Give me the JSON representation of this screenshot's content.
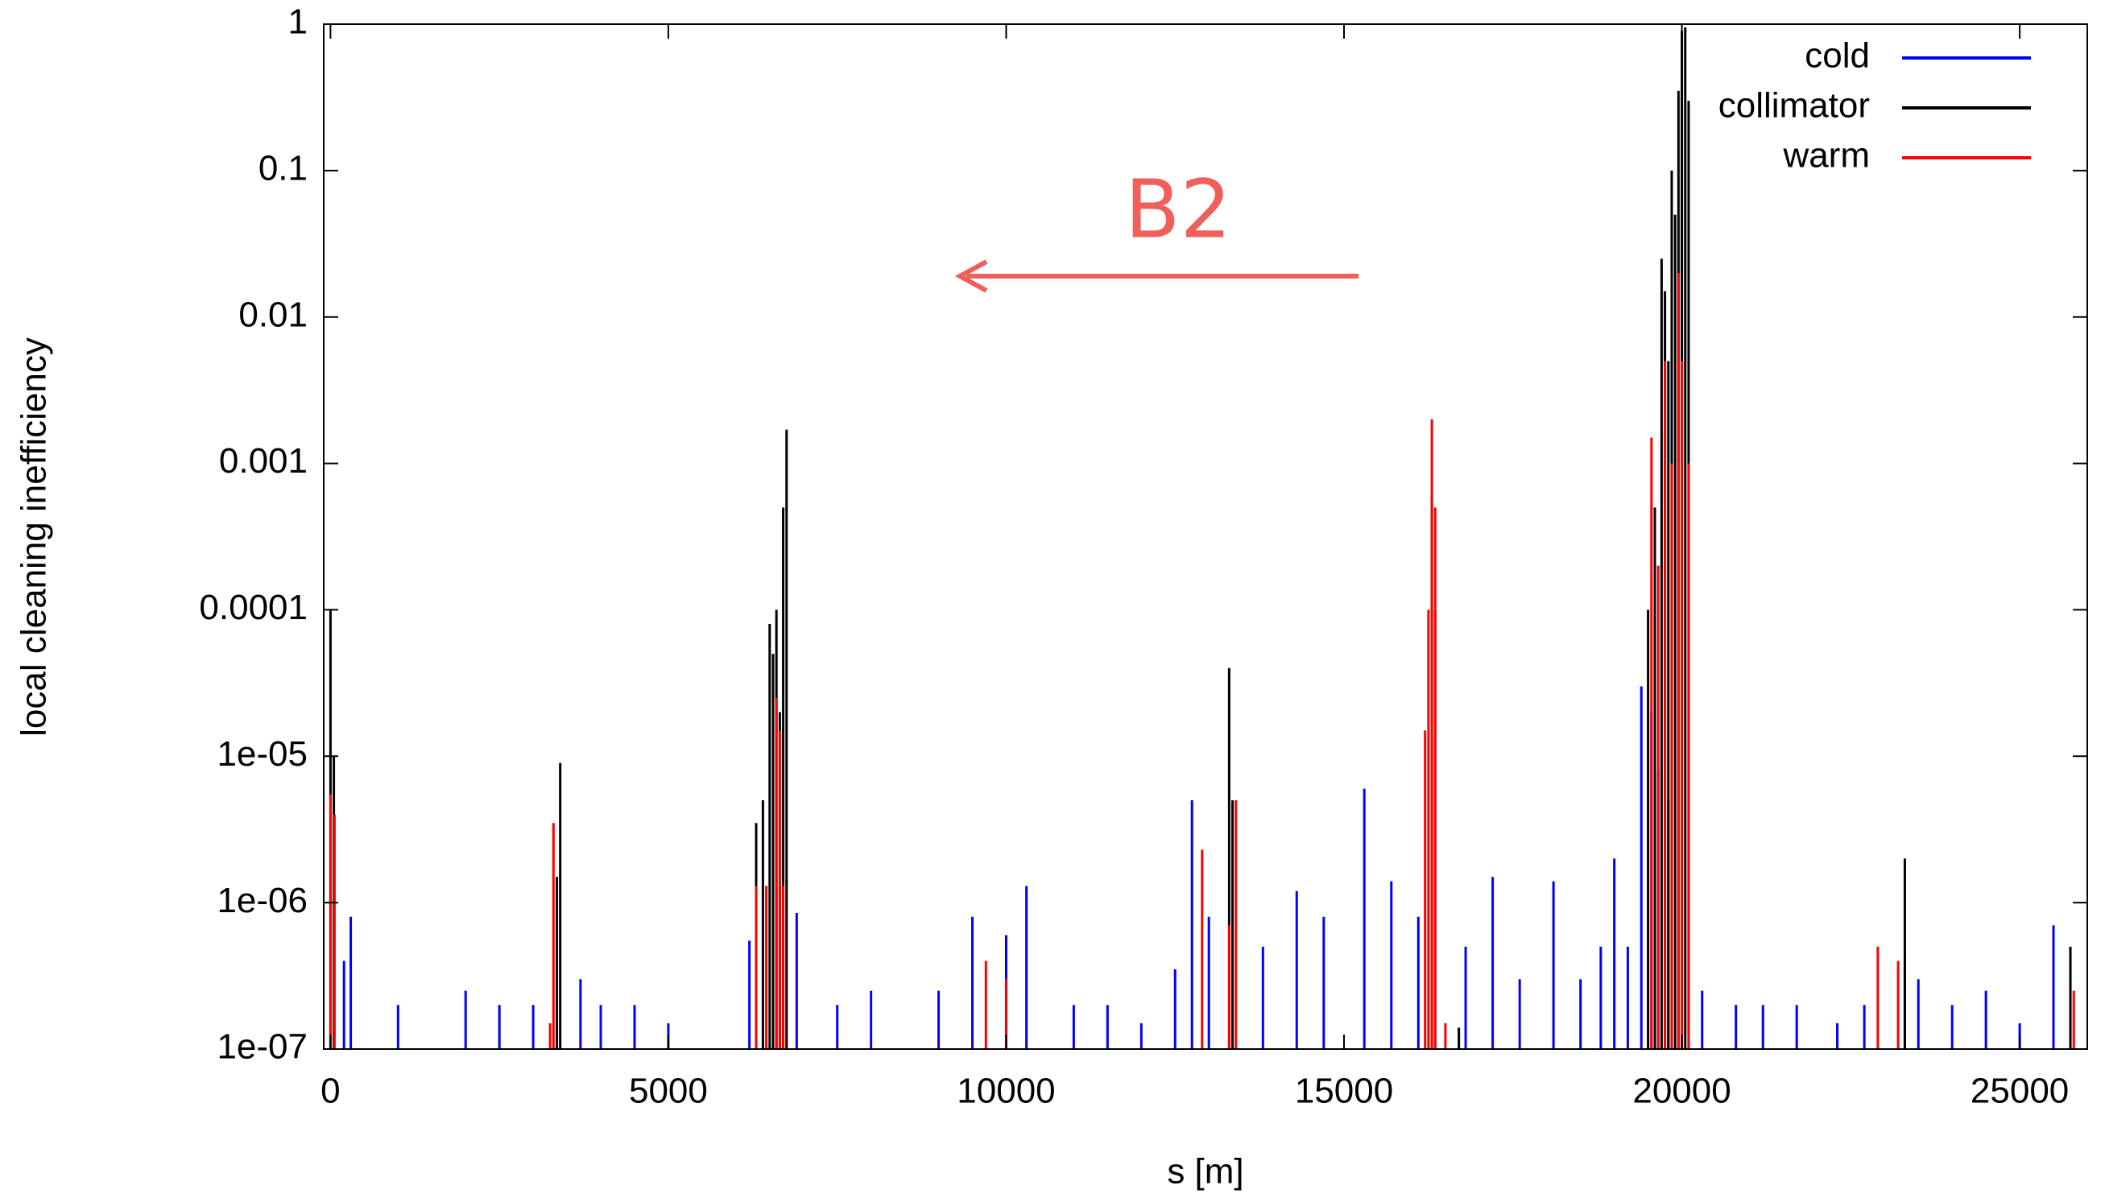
{
  "chart_data": {
    "type": "impulse",
    "xlabel": "s [m]",
    "ylabel": "local cleaning inefficiency",
    "annotation": "B2",
    "log_y": true,
    "legend": "top-right",
    "xlim": [
      -100,
      26000
    ],
    "ylim": [
      1e-07,
      1
    ],
    "xticks": [
      0,
      5000,
      10000,
      15000,
      20000,
      25000
    ],
    "yticks": [
      {
        "value": 1e-07,
        "label": "1e-07"
      },
      {
        "value": 1e-06,
        "label": "1e-06"
      },
      {
        "value": 1e-05,
        "label": "1e-05"
      },
      0.0001,
      0.001,
      0.01,
      0.1,
      1
    ],
    "series": [
      {
        "name": "cold",
        "color": "#0000ff",
        "x": [
          200,
          300,
          1000,
          2000,
          2500,
          3000,
          3700,
          4000,
          4500,
          5000,
          6200,
          6900,
          7500,
          8000,
          9000,
          9500,
          10000,
          10300,
          11000,
          11500,
          12000,
          12500,
          12750,
          13000,
          13800,
          14300,
          14700,
          15300,
          15700,
          16100,
          16800,
          17200,
          17600,
          18100,
          18500,
          18800,
          19000,
          19200,
          19400,
          19550,
          19650,
          19800,
          20300,
          20800,
          21200,
          21700,
          22300,
          22700,
          23300,
          23500,
          24000,
          24500,
          25000,
          25500
        ],
        "values": [
          4e-07,
          8e-07,
          2e-07,
          2.5e-07,
          2e-07,
          2e-07,
          3e-07,
          2e-07,
          2e-07,
          1.5e-07,
          5.5e-07,
          8.5e-07,
          2e-07,
          2.5e-07,
          2.5e-07,
          8e-07,
          6e-07,
          1.3e-06,
          2e-07,
          2e-07,
          1.5e-07,
          3.5e-07,
          5e-06,
          8e-07,
          5e-07,
          1.2e-06,
          8e-07,
          6e-06,
          1.4e-06,
          8e-07,
          5e-07,
          1.5e-06,
          3e-07,
          1.4e-06,
          3e-07,
          5e-07,
          2e-06,
          5e-07,
          3e-05,
          2e-05,
          8e-06,
          5e-06,
          2.5e-07,
          2e-07,
          2e-07,
          2e-07,
          1.5e-07,
          2e-07,
          4.5e-07,
          3e-07,
          2e-07,
          2.5e-07,
          1.5e-07,
          7e-07
        ]
      },
      {
        "name": "collimator",
        "color": "#000000",
        "x": [
          0,
          50,
          3350,
          3400,
          6300,
          6400,
          6500,
          6550,
          6600,
          6650,
          6700,
          6750,
          13300,
          13350,
          16300,
          16350,
          16700,
          19500,
          19600,
          19700,
          19750,
          19800,
          19850,
          19900,
          19950,
          20000,
          20050,
          20100,
          23300,
          25750
        ],
        "values": [
          0.0001,
          1e-05,
          1.5e-06,
          9e-06,
          3.5e-06,
          5e-06,
          8e-05,
          5e-05,
          0.0001,
          2e-05,
          0.0005,
          0.0017,
          4e-05,
          5e-06,
          0.0006,
          0.0001,
          1.4e-07,
          0.0001,
          0.0005,
          0.025,
          0.015,
          0.005,
          0.1,
          0.05,
          0.35,
          0.9,
          0.95,
          0.3,
          2e-06,
          5e-07
        ]
      },
      {
        "name": "warm",
        "color": "#ff0000",
        "x": [
          0,
          60,
          3250,
          3300,
          6300,
          6450,
          6600,
          6650,
          6700,
          9700,
          10000,
          12900,
          13300,
          13400,
          16200,
          16250,
          16300,
          16350,
          16500,
          19550,
          19650,
          19750,
          19850,
          19950,
          20000,
          20100,
          22900,
          23200,
          25800
        ],
        "values": [
          5.5e-06,
          4e-06,
          1.5e-07,
          3.5e-06,
          1.3e-06,
          1.3e-06,
          2.5e-05,
          1.5e-05,
          1.3e-06,
          4e-07,
          3e-07,
          2.3e-06,
          7e-07,
          5e-06,
          1.5e-05,
          0.0001,
          0.002,
          0.0005,
          1.5e-07,
          0.0015,
          0.0002,
          0.005,
          0.001,
          0.02,
          0.005,
          0.001,
          5e-07,
          4e-07,
          2.5e-07
        ]
      }
    ]
  }
}
